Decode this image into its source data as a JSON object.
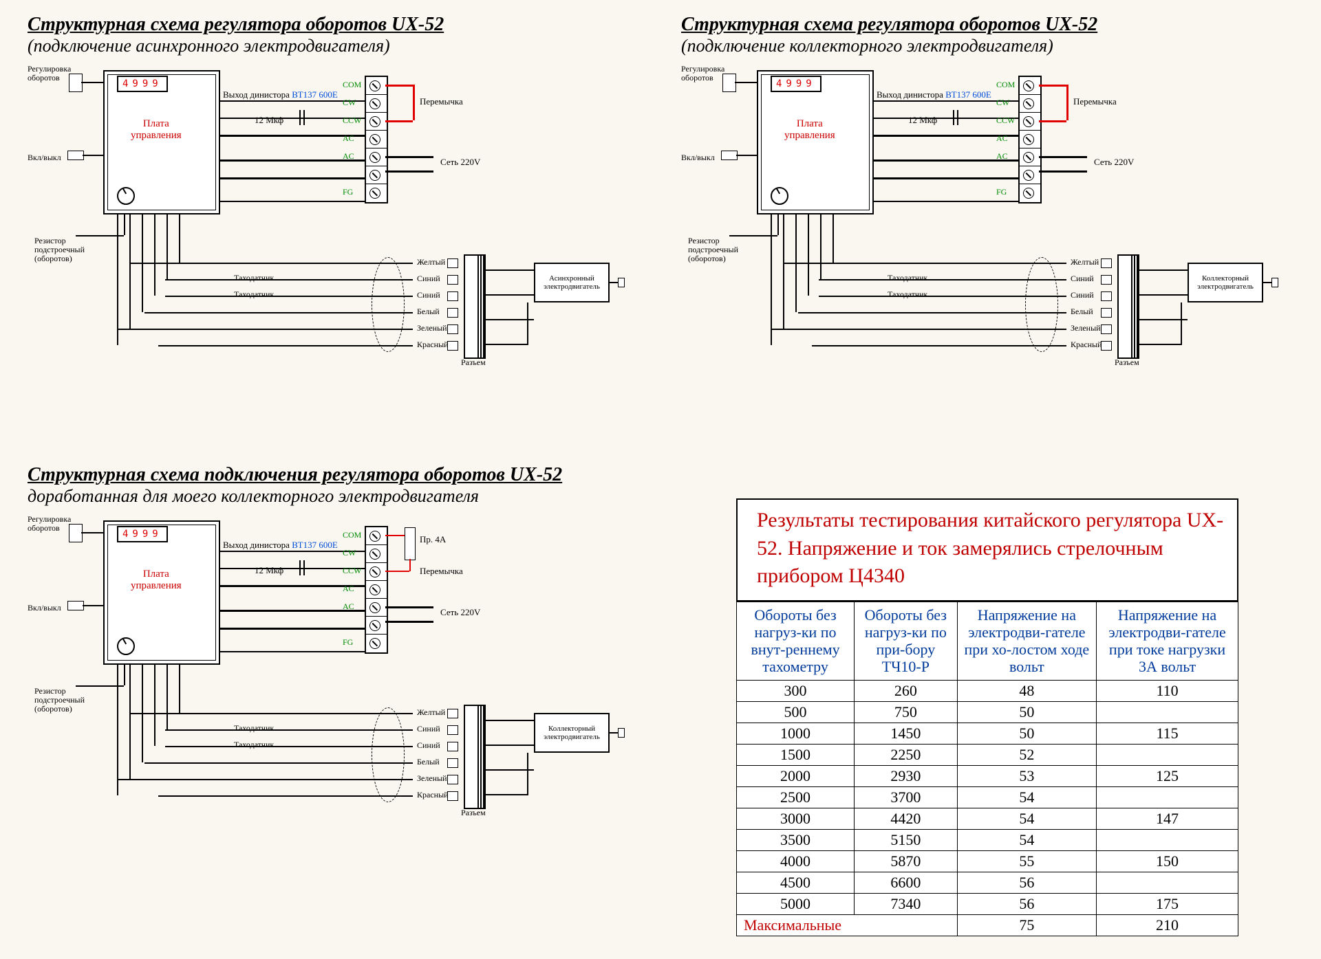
{
  "diagrams": [
    {
      "title_line1": "Структурная схема регулятора оборотов UX-52",
      "title_line2": "(подключение асинхронного электродвигателя)",
      "motor_label": "Асинхронный\nэлектродвигатель"
    },
    {
      "title_line1": "Структурная схема регулятора оборотов UX-52",
      "title_line2": "(подключение коллекторного электродвигателя)",
      "motor_label": "Коллекторный\nэлектродвигатель"
    },
    {
      "title_line1": "Структурная схема подключения регулятора оборотов UX-52",
      "title_line2": "доработанная для моего  коллекторного электродвигателя",
      "motor_label": "Коллекторный\nэлектродвигатель",
      "fuse_label": "Пр. 4А"
    }
  ],
  "common": {
    "reg_label": "Регулировка\nоборотов",
    "plate_label": "Плата\nуправления",
    "switch_label": "Вкл/выкл",
    "resistor_label": "Резистор\nподстроечный\n(оборотов)",
    "dinistor_label": "Выход динистора",
    "dinistor_model": "ВТ137 600Е",
    "cap_label": "12 Мкф",
    "jumper_label": "Перемычка",
    "mains_label": "Сеть 220V",
    "tacho_label": "Таходатчик",
    "wire_colors": [
      "Желтый",
      "Синий",
      "Синий",
      "Белый",
      "Зеленый",
      "Красный"
    ],
    "connector_label": "Разъем",
    "terminals": [
      "COM",
      "CW",
      "CCW",
      "AC",
      "AC",
      "FG"
    ],
    "display_value": "4999"
  },
  "results": {
    "title": "Результаты тестирования китайского регулятора UX-52. Напряжение и ток замерялись стрелочным прибором Ц4340",
    "headers": [
      "Обороты без нагруз-ки по внут-реннему тахометру",
      "Обороты без нагруз-ки по при-бору ТЧ10-Р",
      "Напряжение на электродви-гателе при хо-лостом ходе вольт",
      "Напряжение на электродви-гателе при токе нагрузки 3А вольт"
    ],
    "rows": [
      [
        "300",
        "260",
        "48",
        "110"
      ],
      [
        "500",
        "750",
        "50",
        ""
      ],
      [
        "1000",
        "1450",
        "50",
        "115"
      ],
      [
        "1500",
        "2250",
        "52",
        ""
      ],
      [
        "2000",
        "2930",
        "53",
        "125"
      ],
      [
        "2500",
        "3700",
        "54",
        ""
      ],
      [
        "3000",
        "4420",
        "54",
        "147"
      ],
      [
        "3500",
        "5150",
        "54",
        ""
      ],
      [
        "4000",
        "5870",
        "55",
        "150"
      ],
      [
        "4500",
        "6600",
        "56",
        ""
      ],
      [
        "5000",
        "7340",
        "56",
        "175"
      ]
    ],
    "max_row": [
      "Максимальные",
      "75",
      "210"
    ]
  },
  "styling": {
    "page_bg": "#f9f7f0",
    "red": "#c00000",
    "blue": "#003b9b",
    "green": "#008a00",
    "wire_red": "#e00000",
    "title_fontsize": 28,
    "sub_fontsize": 26,
    "table_th_fontsize": 22,
    "table_td_fontsize": 22
  }
}
